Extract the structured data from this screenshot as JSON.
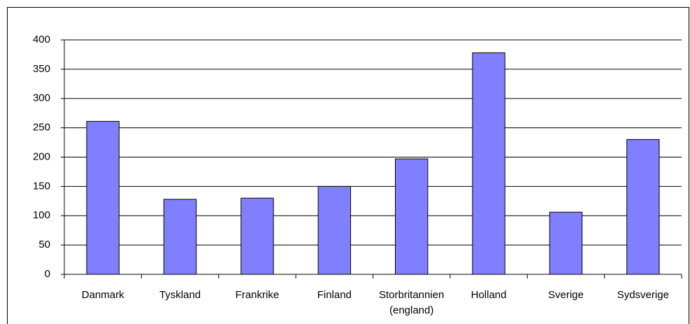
{
  "chart_data": {
    "type": "bar",
    "categories": [
      "Danmark",
      "Tyskland",
      "Frankrike",
      "Finland",
      "Storbritannien (england)",
      "Holland",
      "Sverige",
      "Sydsverige"
    ],
    "values": [
      261,
      128,
      130,
      150,
      197,
      378,
      106,
      230
    ],
    "color": "#8080ff",
    "ylim": [
      0,
      400
    ],
    "yticks": [
      0,
      50,
      100,
      150,
      200,
      250,
      300,
      350,
      400
    ],
    "grid": true
  }
}
